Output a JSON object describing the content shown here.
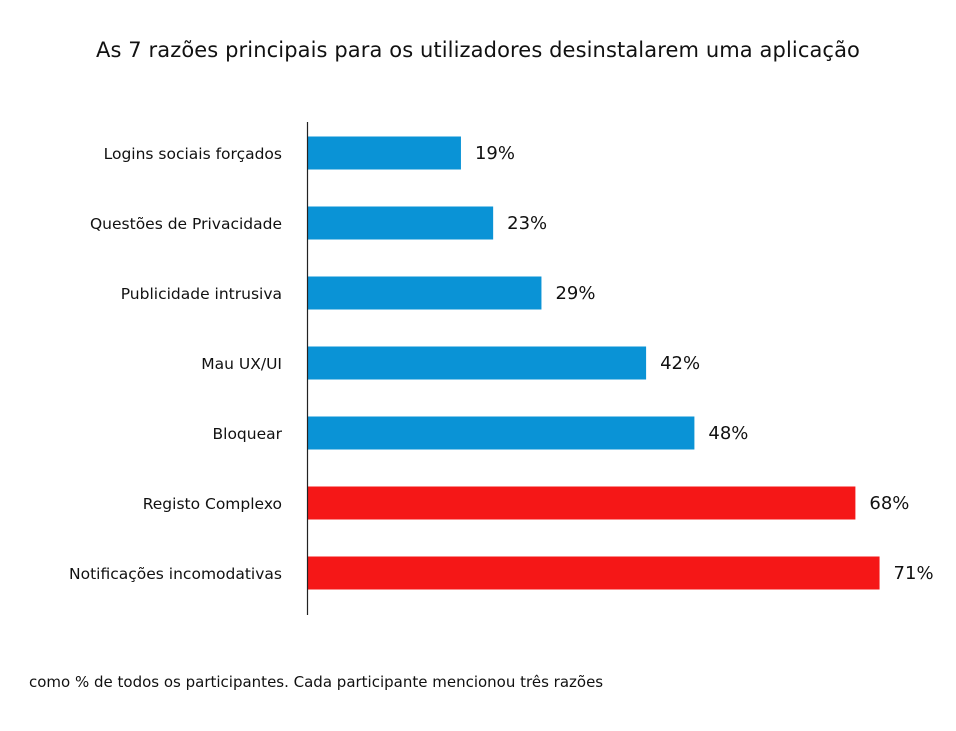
{
  "chart_data": {
    "type": "bar",
    "orientation": "horizontal",
    "title": "As 7 razões principais para os utilizadores desinstalarem uma aplicação",
    "categories": [
      "Logins sociais forçados",
      "Questões de Privacidade",
      "Publicidade intrusiva",
      "Mau UX/UI",
      "Bloquear",
      "Registo Complexo",
      "Notificações incomodativas"
    ],
    "values": [
      19,
      23,
      29,
      42,
      48,
      68,
      71
    ],
    "value_labels": [
      "19%",
      "23%",
      "29%",
      "42%",
      "48%",
      "68%",
      "71%"
    ],
    "bar_colors": [
      "#0a93d6",
      "#0a93d6",
      "#0a93d6",
      "#0a93d6",
      "#0a93d6",
      "#f51717",
      "#f51717"
    ],
    "unit": "%",
    "xlim": [
      0,
      100
    ],
    "grid": false,
    "legend": "none"
  },
  "footnote": "como % de todos os participantes. Cada participante mencionou três razões"
}
